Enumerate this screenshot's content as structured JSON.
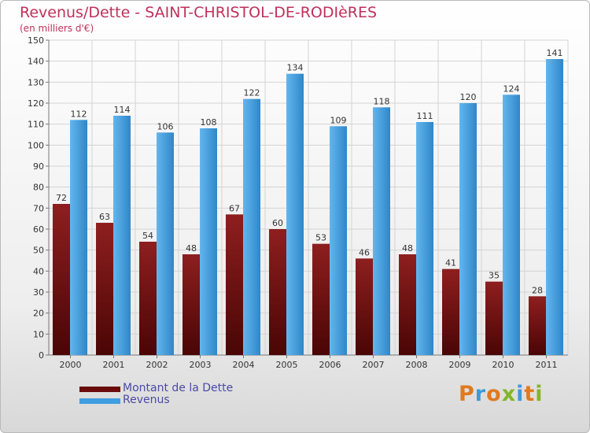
{
  "title": "Revenus/Dette - SAINT-CHRISTOL-DE-RODIèRES",
  "subtitle": "(en milliers d'€)",
  "logo": [
    "P",
    "r",
    "o",
    "x",
    "i",
    "t",
    "i"
  ],
  "colors": {
    "dette": "#7a1010",
    "revenus": "#3f9ee0",
    "text": "#c0305c"
  },
  "chart_data": {
    "type": "bar",
    "categories": [
      "2000",
      "2001",
      "2002",
      "2003",
      "2004",
      "2005",
      "2006",
      "2007",
      "2008",
      "2009",
      "2010",
      "2011"
    ],
    "series": [
      {
        "name": "Montant de la Dette",
        "values": [
          72,
          63,
          54,
          48,
          67,
          60,
          53,
          46,
          48,
          41,
          35,
          28
        ]
      },
      {
        "name": "Revenus",
        "values": [
          112,
          114,
          106,
          108,
          122,
          134,
          109,
          118,
          111,
          120,
          124,
          141
        ]
      }
    ],
    "ylim": [
      0,
      150
    ],
    "yticks": [
      0,
      10,
      20,
      30,
      40,
      50,
      60,
      70,
      80,
      90,
      100,
      110,
      120,
      130,
      140,
      150
    ],
    "grid": true,
    "legend": "bottom-left"
  }
}
